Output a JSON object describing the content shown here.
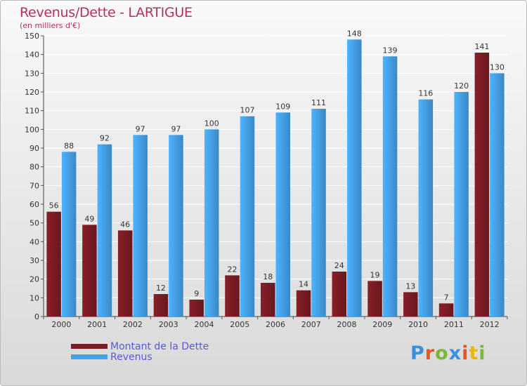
{
  "title": "Revenus/Dette - LARTIGUE",
  "subtitle": "(en milliers d'€)",
  "colors": {
    "debt": "#7a1c24",
    "revenue": "#45a0e6",
    "title": "#b5315c",
    "legend_text": "#5a5ad6"
  },
  "legend": {
    "debt": "Montant de la Dette",
    "revenue": "Revenus"
  },
  "logo": {
    "text": "Proxiti",
    "letters": [
      "P",
      "r",
      "o",
      "x",
      "i",
      "t",
      "i"
    ],
    "colors": [
      "#3b8fdc",
      "#e8541d",
      "#79b83a",
      "#3b8fdc",
      "#e8541d",
      "#f2b01e",
      "#79b83a"
    ]
  },
  "chart_data": {
    "type": "bar",
    "categories": [
      "2000",
      "2001",
      "2002",
      "2003",
      "2004",
      "2005",
      "2006",
      "2007",
      "2008",
      "2009",
      "2010",
      "2011",
      "2012"
    ],
    "series": [
      {
        "name": "Montant de la Dette",
        "values": [
          56,
          49,
          46,
          12,
          9,
          22,
          18,
          14,
          24,
          19,
          13,
          7,
          141
        ]
      },
      {
        "name": "Revenus",
        "values": [
          88,
          92,
          97,
          97,
          100,
          107,
          109,
          111,
          148,
          139,
          116,
          120,
          130
        ]
      }
    ],
    "ylim": [
      0,
      150
    ],
    "yticks": [
      0,
      10,
      20,
      30,
      40,
      50,
      60,
      70,
      80,
      90,
      100,
      110,
      120,
      130,
      140,
      150
    ],
    "grid": true,
    "legend_position": "bottom-left"
  }
}
